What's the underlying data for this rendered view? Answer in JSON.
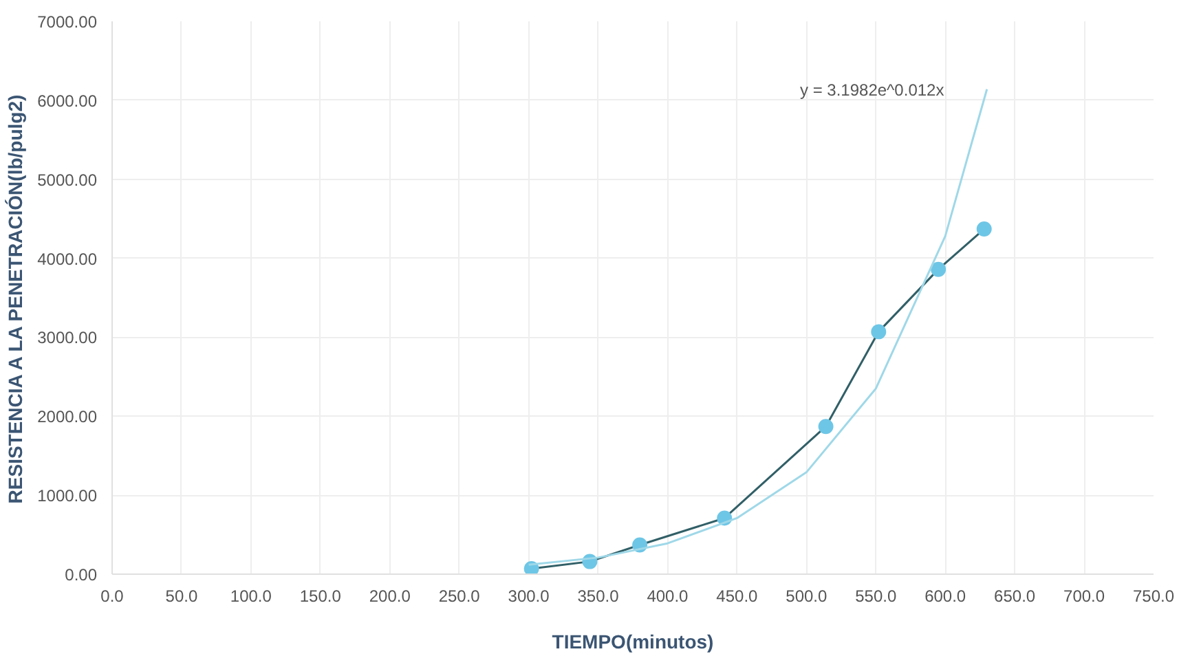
{
  "chart_data": {
    "type": "line",
    "xlabel": "TIEMPO(minutos)",
    "ylabel": "RESISTENCIA A LA PENETRACIÓN(lb/pulg2)",
    "xlim": [
      0,
      750
    ],
    "ylim": [
      0,
      7000
    ],
    "xticks": [
      {
        "value": 0,
        "label": "0.0"
      },
      {
        "value": 50,
        "label": "50.0"
      },
      {
        "value": 100,
        "label": "100.0"
      },
      {
        "value": 150,
        "label": "150.0"
      },
      {
        "value": 200,
        "label": "200.0"
      },
      {
        "value": 250,
        "label": "250.0"
      },
      {
        "value": 300,
        "label": "300.0"
      },
      {
        "value": 350,
        "label": "350.0"
      },
      {
        "value": 400,
        "label": "400.0"
      },
      {
        "value": 450,
        "label": "450.0"
      },
      {
        "value": 500,
        "label": "500.0"
      },
      {
        "value": 550,
        "label": "550.0"
      },
      {
        "value": 600,
        "label": "600.0"
      },
      {
        "value": 650,
        "label": "650.0"
      },
      {
        "value": 700,
        "label": "700.0"
      },
      {
        "value": 750,
        "label": "750.0"
      }
    ],
    "yticks": [
      {
        "value": 0,
        "label": "0.00"
      },
      {
        "value": 1000,
        "label": "1000.00"
      },
      {
        "value": 2000,
        "label": "2000.00"
      },
      {
        "value": 3000,
        "label": "3000.00"
      },
      {
        "value": 4000,
        "label": "4000.00"
      },
      {
        "value": 5000,
        "label": "5000.00"
      },
      {
        "value": 6000,
        "label": "6000.00"
      },
      {
        "value": 7000,
        "label": "7000.00"
      }
    ],
    "grid": true,
    "series": [
      {
        "color": "#6ec6e6",
        "marker": "circle",
        "x": [
          302,
          344,
          380,
          441,
          514,
          552,
          595,
          628
        ],
        "values": [
          70,
          160,
          370,
          710,
          1870,
          3070,
          3860,
          4370
        ]
      },
      {
        "color": "#9fd8e8",
        "marker": "none",
        "x": [
          300,
          350,
          400,
          450,
          500,
          550,
          600,
          630
        ],
        "values": [
          120,
          210,
          390,
          710,
          1290,
          2350,
          4280,
          6140
        ]
      }
    ],
    "annotations": [
      "y = 3.1982e^0.012x"
    ]
  }
}
